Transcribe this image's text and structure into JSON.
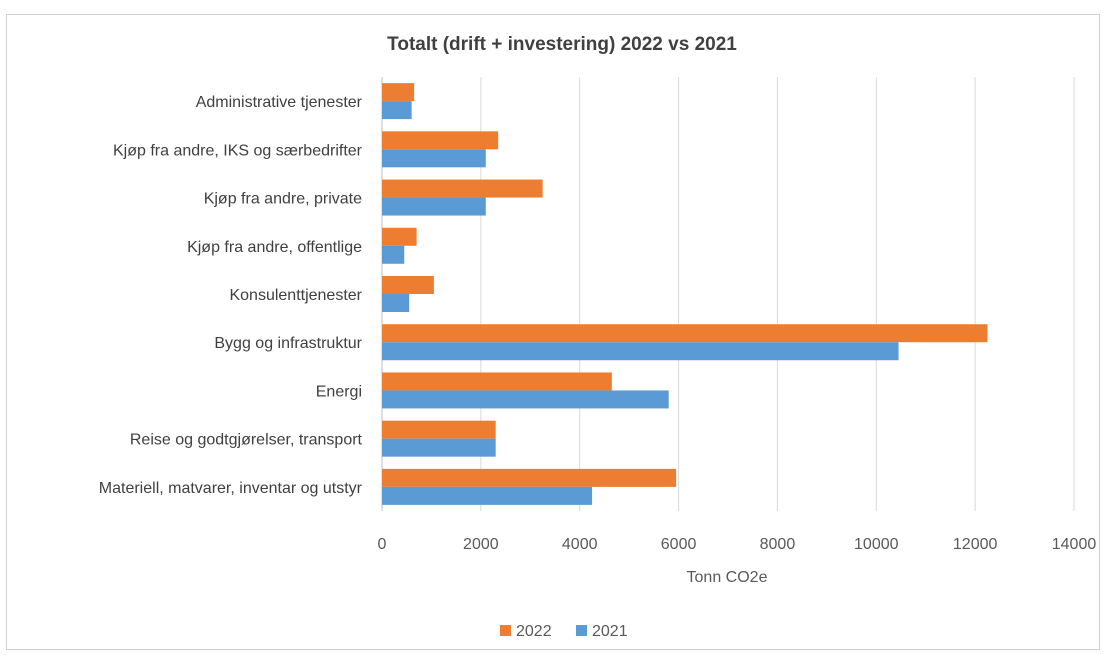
{
  "chart_data": {
    "type": "bar",
    "orientation": "horizontal",
    "title": "Totalt (drift + investering) 2022 vs 2021",
    "xlabel": "Tonn CO2e",
    "ylabel": "",
    "xlim": [
      0,
      14000
    ],
    "xticks": [
      0,
      2000,
      4000,
      6000,
      8000,
      10000,
      12000,
      14000
    ],
    "xtick_labels": [
      "0",
      "2000",
      "4000",
      "6000",
      "8000",
      "10000",
      "12000",
      "14000"
    ],
    "grid": "vertical",
    "legend_position": "bottom",
    "categories": [
      "Administrative tjenester",
      "Kjøp fra andre, IKS og særbedrifter",
      "Kjøp fra andre, private",
      "Kjøp fra andre, offentlige",
      "Konsulenttjenester",
      "Bygg og infrastruktur",
      "Energi",
      "Reise og godtgjørelser, transport",
      "Materiell, matvarer, inventar og utstyr"
    ],
    "series": [
      {
        "name": "2022",
        "color": "#ed7d31",
        "values": [
          650,
          2350,
          3250,
          700,
          1050,
          12250,
          4650,
          2300,
          5950
        ]
      },
      {
        "name": "2021",
        "color": "#5b9bd5",
        "values": [
          600,
          2100,
          2100,
          450,
          550,
          10450,
          5800,
          2300,
          4250
        ]
      }
    ]
  }
}
